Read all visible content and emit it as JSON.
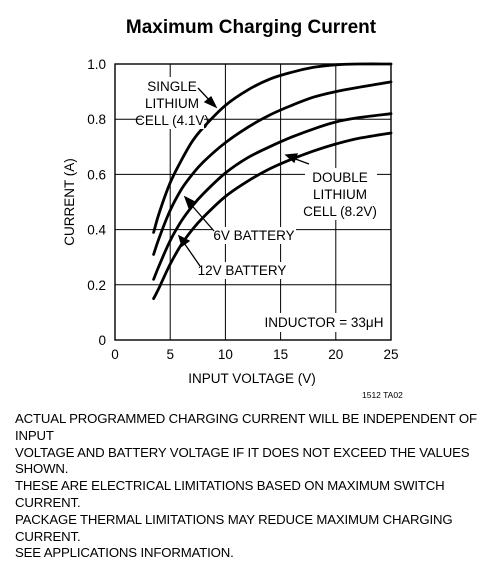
{
  "chart_data": {
    "type": "line",
    "title": "Maximum Charging Current",
    "xlabel": "INPUT VOLTAGE (V)",
    "ylabel": "CURRENT (A)",
    "xlim": [
      0,
      25
    ],
    "ylim": [
      0,
      1.0
    ],
    "x_ticks": [
      "0",
      "5",
      "10",
      "15",
      "20",
      "25"
    ],
    "y_ticks": [
      "0",
      "0.2",
      "0.4",
      "0.6",
      "0.8",
      "1.0"
    ],
    "grid": true,
    "series": [
      {
        "name": "SINGLE LITHIUM CELL (4.1V)",
        "x": [
          3.5,
          4,
          5,
          6,
          7,
          8,
          10,
          12,
          14,
          16,
          18,
          20,
          22,
          25
        ],
        "y": [
          0.39,
          0.46,
          0.57,
          0.65,
          0.72,
          0.77,
          0.85,
          0.905,
          0.945,
          0.97,
          0.988,
          0.997,
          1.0,
          1.0
        ]
      },
      {
        "name": "6V BATTERY",
        "x": [
          3.5,
          4,
          5,
          6,
          7,
          8,
          10,
          12,
          14,
          16,
          18,
          20,
          22,
          25
        ],
        "y": [
          0.31,
          0.37,
          0.47,
          0.545,
          0.6,
          0.645,
          0.715,
          0.77,
          0.815,
          0.85,
          0.88,
          0.9,
          0.915,
          0.935
        ]
      },
      {
        "name": "DOUBLE LITHIUM CELL (8.2V)",
        "x": [
          3.5,
          4,
          5,
          6,
          7,
          8,
          10,
          12,
          14,
          16,
          18,
          20,
          22,
          25
        ],
        "y": [
          0.22,
          0.27,
          0.36,
          0.43,
          0.485,
          0.53,
          0.605,
          0.66,
          0.7,
          0.735,
          0.765,
          0.79,
          0.805,
          0.82
        ]
      },
      {
        "name": "12V BATTERY",
        "x": [
          3.5,
          4,
          5,
          6,
          7,
          8,
          10,
          12,
          14,
          16,
          18,
          20,
          22,
          25
        ],
        "y": [
          0.15,
          0.19,
          0.275,
          0.345,
          0.4,
          0.445,
          0.52,
          0.575,
          0.62,
          0.655,
          0.685,
          0.71,
          0.73,
          0.75
        ]
      }
    ],
    "annotations": {
      "single_line1": "SINGLE",
      "single_line2": "LITHIUM",
      "single_line3": "CELL (4.1V)",
      "double_line1": "DOUBLE",
      "double_line2": "LITHIUM",
      "double_line3": "CELL (8.2V)",
      "six_v": "6V BATTERY",
      "twelve_v": "12V BATTERY",
      "inductor": "INDUCTOR = 33μH",
      "part_code": "1512 TA02"
    }
  },
  "note": "ACTUAL PROGRAMMED CHARGING CURRENT WILL BE INDEPENDENT OF INPUT\nVOLTAGE AND BATTERY VOLTAGE IF IT DOES NOT EXCEED THE VALUES SHOWN.\nTHESE ARE ELECTRICAL LIMITATIONS BASED ON MAXIMUM SWITCH CURRENT.\nPACKAGE THERMAL LIMITATIONS MAY REDUCE MAXIMUM CHARGING CURRENT.\nSEE APPLICATIONS INFORMATION."
}
